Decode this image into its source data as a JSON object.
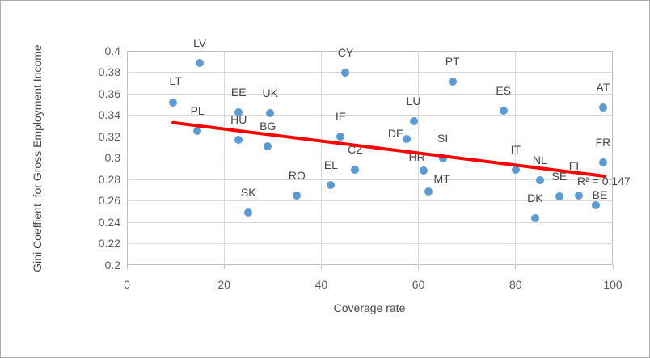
{
  "chart_data": {
    "type": "scatter",
    "title": "",
    "xlabel": "Coverage rate",
    "ylabel": "Gini Coeffient  for Gross Employment Income",
    "xlim": [
      0,
      100
    ],
    "ylim": [
      0.2,
      0.4
    ],
    "x_ticks": [
      "0",
      "20",
      "40",
      "60",
      "80",
      "100"
    ],
    "y_ticks": [
      "0.4",
      "0.38",
      "0.36",
      "0.34",
      "0.32",
      "0.3",
      "0.28",
      "0.26",
      "0.24",
      "0.22",
      "0.2"
    ],
    "grid": true,
    "legend": "none",
    "points": [
      {
        "label": "LT",
        "x": 9.5,
        "y": 0.352
      },
      {
        "label": "LV",
        "x": 15,
        "y": 0.389
      },
      {
        "label": "PL",
        "x": 14.5,
        "y": 0.325
      },
      {
        "label": "EE",
        "x": 23,
        "y": 0.343
      },
      {
        "label": "HU",
        "x": 23,
        "y": 0.317
      },
      {
        "label": "SK",
        "x": 25,
        "y": 0.249
      },
      {
        "label": "UK",
        "x": 29.5,
        "y": 0.342
      },
      {
        "label": "BG",
        "x": 29,
        "y": 0.311
      },
      {
        "label": "RO",
        "x": 35,
        "y": 0.265
      },
      {
        "label": "EL",
        "x": 42,
        "y": 0.275
      },
      {
        "label": "IE",
        "x": 44,
        "y": 0.32
      },
      {
        "label": "CY",
        "x": 45,
        "y": 0.38
      },
      {
        "label": "CZ",
        "x": 47,
        "y": 0.289
      },
      {
        "label": "DE",
        "x": 57.5,
        "y": 0.318
      },
      {
        "label": "LU",
        "x": 59,
        "y": 0.334
      },
      {
        "label": "HR",
        "x": 61,
        "y": 0.288
      },
      {
        "label": "MT",
        "x": 62,
        "y": 0.269
      },
      {
        "label": "SI",
        "x": 65,
        "y": 0.3
      },
      {
        "label": "PT",
        "x": 67,
        "y": 0.371
      },
      {
        "label": "ES",
        "x": 77.5,
        "y": 0.344
      },
      {
        "label": "IT",
        "x": 80,
        "y": 0.289
      },
      {
        "label": "DK",
        "x": 84,
        "y": 0.244
      },
      {
        "label": "NL",
        "x": 85,
        "y": 0.279
      },
      {
        "label": "SE",
        "x": 89,
        "y": 0.264
      },
      {
        "label": "FI",
        "x": 93,
        "y": 0.265
      },
      {
        "label": "BE",
        "x": 96.5,
        "y": 0.256
      },
      {
        "label": "AT",
        "x": 98,
        "y": 0.347
      },
      {
        "label": "FR",
        "x": 98,
        "y": 0.296
      }
    ],
    "label_offsets": {
      "LT": [
        3,
        -27
      ],
      "DE": [
        -13,
        -7
      ],
      "MT": [
        17,
        -16
      ],
      "HR": [
        -8,
        -17
      ],
      "FI": [
        -6,
        -37
      ],
      "BE": [
        5,
        -13
      ]
    },
    "trendline": {
      "x1": 9.5,
      "y1": 0.333,
      "x2": 98.3,
      "y2": 0.283,
      "r_squared": 0.147,
      "r2_label": "R² = 0.147"
    },
    "colors": {
      "point": "#5B9BD5",
      "trendline": "#FF0000",
      "gridline": "#D9D9D9",
      "axis_line": "#BFBFBF",
      "tick_text": "#595959",
      "label_text": "#454545"
    }
  }
}
